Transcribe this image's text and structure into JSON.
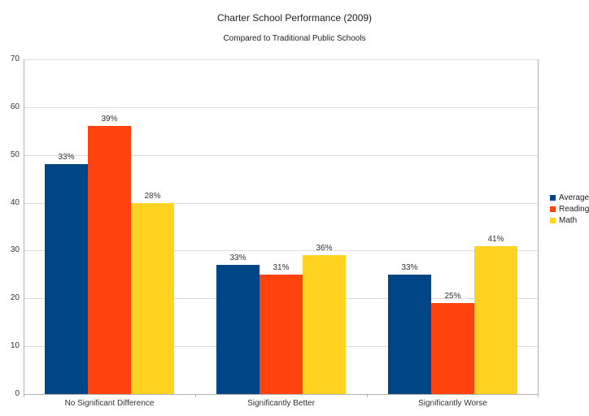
{
  "chart": {
    "title": "Charter School Performance (2009)",
    "subtitle": "Compared to Traditional Public Schools"
  },
  "chart_data": {
    "type": "bar",
    "title": "Charter School Performance (2009)",
    "subtitle": "Compared to Traditional Public Schools",
    "categories": [
      "No Significant Difference",
      "Significantly Better",
      "Significantly Worse"
    ],
    "series": [
      {
        "name": "Average",
        "color": "#004586",
        "values": [
          48,
          27,
          25
        ],
        "point_labels": [
          "33%",
          "33%",
          "33%"
        ]
      },
      {
        "name": "Reading",
        "color": "#FF420E",
        "values": [
          56,
          25,
          19
        ],
        "point_labels": [
          "39%",
          "31%",
          "25%"
        ]
      },
      {
        "name": "Math",
        "color": "#FFD320",
        "values": [
          40,
          29,
          31
        ],
        "point_labels": [
          "28%",
          "36%",
          "41%"
        ]
      }
    ],
    "xlabel": "",
    "ylabel": "",
    "ylim": [
      0,
      70
    ],
    "yticks": [
      0,
      10,
      20,
      30,
      40,
      50,
      60,
      70
    ],
    "grid": "horizontal",
    "legend_position": "right"
  },
  "colors": {
    "axis": "#b3b3b3",
    "gridline": "#dcdcdc",
    "text": "#333333",
    "background": "#ffffff"
  }
}
